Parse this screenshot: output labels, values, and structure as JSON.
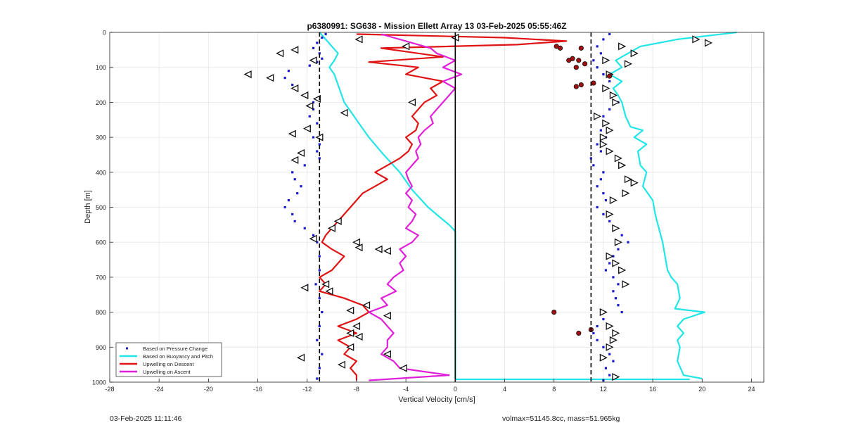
{
  "footer": {
    "left": "03-Feb-2025 11:11:46",
    "right": "volmax=51145.8cc, mass=51.965kg"
  },
  "chart_data": {
    "type": "line",
    "title": "p6380991: SG638 - Mission Ellett Array 13 03-Feb-2025 05:55:46Z",
    "xlabel": "Vertical Velocity [cm/s]",
    "ylabel": "Depth [m]",
    "xlim": [
      -28,
      25
    ],
    "ylim": [
      0,
      1000
    ],
    "y_reversed": true,
    "xticks": [
      -28,
      -24,
      -20,
      -16,
      -12,
      -8,
      -4,
      0,
      4,
      8,
      12,
      16,
      20,
      24
    ],
    "yticks": [
      0,
      100,
      200,
      300,
      400,
      500,
      600,
      700,
      800,
      900,
      1000
    ],
    "grid": true,
    "legend_position": "bottom-left",
    "reference_lines": {
      "vertical_solid": 0,
      "vertical_dashed": [
        -11,
        11
      ]
    },
    "series": [
      {
        "name": "Based on Pressure Change",
        "style": "dots",
        "color": "#1a1acc",
        "branches": [
          {
            "depth": [
              5,
              15,
              30,
              45,
              60,
              75,
              85,
              95,
              110,
              130,
              150,
              165,
              180,
              200,
              220,
              240,
              260,
              280,
              300,
              320,
              340,
              360,
              380,
              400,
              420,
              440,
              460,
              480,
              500,
              520,
              540,
              560,
              580,
              600,
              640,
              680,
              720,
              760,
              800,
              840,
              880,
              920,
              960,
              990
            ],
            "velocity": [
              -10.5,
              -10.8,
              -11.2,
              -11.5,
              -11,
              -10.8,
              -11.2,
              -11.8,
              -13.5,
              -13.8,
              -13.2,
              -12.8,
              -12,
              -11.5,
              -11.5,
              -11.8,
              -11.2,
              -11.8,
              -11.5,
              -11,
              -11.2,
              -11,
              -12.2,
              -13.2,
              -13,
              -12.5,
              -12.8,
              -13.5,
              -13.8,
              -13.2,
              -13,
              -12.2,
              -11.5,
              -11.2,
              -11,
              -11,
              -11.3,
              -11,
              -10.8,
              -11,
              -11.2,
              -10.8,
              -11,
              -11.2
            ]
          },
          {
            "depth": [
              5,
              20,
              40,
              60,
              80,
              100,
              120,
              140,
              160,
              180,
              200,
              220,
              240,
              260,
              280,
              300,
              320,
              340,
              360,
              380,
              400,
              420,
              440,
              460,
              480,
              500,
              520,
              540,
              560,
              580,
              600,
              620,
              640,
              660,
              680,
              700,
              720,
              740,
              760,
              780,
              800,
              820,
              840,
              860,
              880,
              900,
              920,
              940,
              960,
              980,
              995
            ],
            "velocity": [
              12.5,
              12,
              11.5,
              11.8,
              11.2,
              11.5,
              12,
              12.5,
              12.2,
              12.8,
              13.2,
              12.5,
              12,
              12.2,
              11.8,
              12.2,
              11.5,
              11.8,
              11,
              11.2,
              12,
              11.8,
              11.5,
              12,
              12.2,
              11.5,
              12,
              12.5,
              13,
              13.5,
              14,
              13.2,
              12.8,
              12.5,
              12.2,
              12.8,
              13.2,
              12.8,
              13,
              13.2,
              13.5,
              12,
              11.5,
              11.2,
              11.5,
              12,
              12.5,
              12.8,
              12.2,
              12.5,
              12
            ]
          }
        ]
      },
      {
        "name": "Based on Buoyancy and Pitch",
        "style": "line",
        "color": "#22e5e8",
        "branches": [
          {
            "depth": [
              0,
              20,
              40,
              60,
              80,
              100,
              120,
              150,
              200,
              250,
              300,
              350,
              400,
              450,
              500,
              530,
              550,
              565,
              570,
              700,
              800,
              900,
              990
            ],
            "velocity": [
              -11,
              -10.5,
              -10,
              -9.5,
              -9.8,
              -10.2,
              -9.8,
              -9.5,
              -9,
              -8,
              -7,
              -5.8,
              -4.5,
              -3.5,
              -2.2,
              -1.2,
              -0.5,
              -0.1,
              0,
              0,
              0,
              0,
              0
            ]
          },
          {
            "depth": [
              0,
              20,
              40,
              60,
              80,
              100,
              120,
              140,
              160,
              180,
              200,
              240,
              270,
              280,
              300,
              320,
              340,
              380,
              400,
              440,
              480,
              520,
              560,
              600,
              640,
              680,
              700,
              720,
              760,
              790,
              800,
              820,
              840,
              860,
              880,
              900,
              940,
              980,
              990
            ],
            "velocity": [
              22.8,
              18,
              15,
              14,
              13,
              13.5,
              12.5,
              13.5,
              12.8,
              13.2,
              13.5,
              13.8,
              14.2,
              15.2,
              14.5,
              15.5,
              14.8,
              15,
              15.5,
              15.2,
              16,
              16.2,
              16.5,
              16.8,
              17,
              17.2,
              17.5,
              18,
              18.2,
              17.8,
              20.2,
              18.5,
              18,
              18.5,
              18,
              18.2,
              18,
              18.5,
              20
            ]
          },
          {
            "depth": [
              992,
              992
            ],
            "velocity": [
              0,
              19
            ]
          }
        ]
      },
      {
        "name": "Upwelling on Descent",
        "style": "line",
        "color": "#e01414",
        "branches": [
          {
            "depth": [
              5,
              15,
              25,
              35,
              45,
              55,
              70,
              85,
              100,
              120,
              140,
              160,
              180,
              200,
              220,
              240,
              260,
              280,
              300,
              320,
              340,
              360,
              380,
              400,
              420,
              440,
              460,
              480,
              500,
              520,
              540,
              560,
              580,
              600,
              620,
              640,
              660,
              680,
              700,
              720,
              740,
              760,
              780,
              800,
              820,
              840,
              860,
              880,
              900,
              920,
              940,
              960,
              980,
              995
            ],
            "velocity": [
              -8,
              4,
              9,
              5,
              -6,
              -4,
              -1,
              -7,
              -3,
              -4,
              -1,
              -2,
              -1.5,
              -2.5,
              -3,
              -3.5,
              -3,
              -3.2,
              -4,
              -3.5,
              -3.8,
              -4.5,
              -5.5,
              -6.5,
              -5.5,
              -6.5,
              -7.5,
              -8,
              -8.5,
              -9,
              -9.5,
              -10,
              -10.5,
              -10.8,
              -10,
              -9,
              -9.5,
              -10,
              -11,
              -10.5,
              -11,
              -9,
              -7.5,
              -7,
              -8,
              -9.5,
              -8,
              -9.5,
              -8.5,
              -9,
              -8,
              -8.5,
              -8,
              -8
            ]
          }
        ]
      },
      {
        "name": "Upwelling on Ascent",
        "style": "line",
        "color": "#e020d8",
        "branches": [
          {
            "depth": [
              5,
              15,
              25,
              35,
              45,
              60,
              80,
              100,
              120,
              140,
              160,
              180,
              200,
              220,
              240,
              260,
              280,
              300,
              320,
              340,
              360,
              380,
              400,
              420,
              440,
              460,
              480,
              500,
              520,
              540,
              560,
              580,
              600,
              620,
              640,
              660,
              680,
              700,
              720,
              740,
              760,
              780,
              800,
              820,
              840,
              860,
              880,
              900,
              920,
              940,
              960,
              980,
              995
            ],
            "velocity": [
              -6,
              -5,
              -4,
              -3,
              -2,
              -1.5,
              0,
              -1,
              0.5,
              -1,
              0,
              -0.5,
              -1,
              -1.5,
              -2,
              -1.8,
              -2.5,
              -3,
              -2.8,
              -3.2,
              -3,
              -3.5,
              -4,
              -3.8,
              -3.5,
              -4,
              -3.5,
              -3.8,
              -3.2,
              -3.5,
              -4,
              -3,
              -3.5,
              -4.5,
              -4,
              -4.5,
              -4.2,
              -5,
              -5.5,
              -4.8,
              -6,
              -5.5,
              -7,
              -6,
              -5.5,
              -5,
              -5.5,
              -5.5,
              -6,
              -5,
              -4.5,
              -0.5,
              -7
            ]
          }
        ]
      }
    ],
    "markers": [
      {
        "kind": "triangle-left",
        "color": "#111111",
        "x": [
          -13,
          -14.2,
          -16.8,
          -15,
          -11.5,
          -13,
          -12.2,
          -11.2,
          -11.8,
          -9,
          -12,
          -13.2,
          -11,
          -12.5,
          -13,
          -9.5,
          -10,
          -11.5,
          -8,
          -7.8,
          -6.2,
          -5.5,
          -3.5,
          -8.5,
          -10.5,
          -12.2,
          -10.2,
          -7.2,
          -5.5,
          -8,
          -8.5,
          -7.8,
          -8.5,
          -5.5,
          -12.5,
          -9.2,
          -4.2,
          0,
          -7.8,
          -4
        ],
        "y": [
          50,
          60,
          120,
          130,
          80,
          160,
          180,
          190,
          210,
          230,
          275,
          290,
          300,
          345,
          365,
          540,
          560,
          590,
          600,
          615,
          620,
          625,
          200,
          795,
          720,
          730,
          740,
          780,
          810,
          840,
          860,
          870,
          900,
          920,
          930,
          950,
          960,
          15,
          20,
          40
        ]
      },
      {
        "kind": "triangle-right",
        "color": "#111111",
        "x": [
          13.5,
          14.5,
          19.5,
          20.5,
          12.2,
          14,
          12.5,
          12.2,
          12.8,
          13,
          11.5,
          12.2,
          12.5,
          12,
          12,
          12.5,
          13.2,
          13.5,
          14,
          14.5,
          13.8,
          12.8,
          12.5,
          13,
          13.2,
          12.5,
          13,
          13.5,
          13.8,
          12,
          12.5,
          13,
          12.8,
          12.5,
          12,
          13
        ],
        "y": [
          40,
          60,
          20,
          30,
          80,
          90,
          120,
          160,
          180,
          200,
          240,
          260,
          280,
          300,
          320,
          340,
          360,
          380,
          420,
          430,
          460,
          480,
          520,
          560,
          600,
          640,
          660,
          680,
          720,
          800,
          840,
          860,
          880,
          900,
          930,
          985
        ]
      },
      {
        "kind": "filled-circle",
        "color": "#a01010",
        "x": [
          8.2,
          10.2,
          9.5,
          10,
          10.5,
          9.8,
          10.2,
          11.2,
          12.5,
          8,
          11,
          10,
          8.5,
          9.2,
          9.8
        ],
        "y": [
          40,
          45,
          75,
          80,
          90,
          100,
          150,
          145,
          125,
          800,
          850,
          860,
          45,
          80,
          155
        ]
      }
    ],
    "legend": [
      "Based on Pressure Change",
      "Based on Buoyancy and Pitch",
      "Upwelling on Descent",
      "Upwelling on Ascent"
    ]
  }
}
